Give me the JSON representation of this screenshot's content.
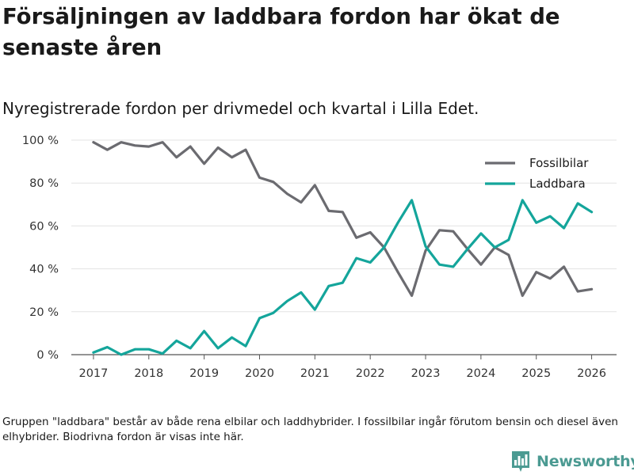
{
  "title": "Försäljningen av laddbara fordon har ökat de senaste åren",
  "subtitle": "Nyregistrerade fordon per drivmedel och kvartal i Lilla Edet.",
  "footnote": "Gruppen \"laddbara\" består av både rena elbilar och laddhybrider. I fossilbilar ingår förutom bensin och diesel även elhybrider. Biodrivna fordon är visas inte här.",
  "brand": {
    "name": "Newsworthy",
    "icon": "bar-chart-logo-icon",
    "color": "#4b9a92"
  },
  "chart_data": {
    "type": "line",
    "title": "Nyregistrerade fordon per drivmedel och kvartal i Lilla Edet.",
    "xlabel": "",
    "ylabel": "",
    "xlim": [
      2016.6,
      2026.45
    ],
    "ylim": [
      0,
      100
    ],
    "x_ticks": [
      2017,
      2018,
      2019,
      2020,
      2021,
      2022,
      2023,
      2024,
      2025,
      2026
    ],
    "y_ticks": [
      0,
      20,
      40,
      60,
      80,
      100
    ],
    "y_tick_labels": [
      "0 %",
      "20 %",
      "40 %",
      "60 %",
      "80 %",
      "100 %"
    ],
    "grid": "horizontal",
    "legend_position": "top-right",
    "x": [
      2017.0,
      2017.25,
      2017.5,
      2017.75,
      2018.0,
      2018.25,
      2018.5,
      2018.75,
      2019.0,
      2019.25,
      2019.5,
      2019.75,
      2020.0,
      2020.25,
      2020.5,
      2020.75,
      2021.0,
      2021.25,
      2021.5,
      2021.75,
      2022.0,
      2022.25,
      2022.5,
      2022.75,
      2023.0,
      2023.25,
      2023.5,
      2023.75,
      2024.0,
      2024.25,
      2024.5,
      2024.75,
      2025.0,
      2025.25,
      2025.5,
      2025.75,
      2026.0
    ],
    "series": [
      {
        "name": "Fossilbilar",
        "color": "#6b6b70",
        "values": [
          99,
          95.5,
          99,
          97.5,
          97,
          99,
          92,
          97,
          89,
          96.5,
          92,
          95.5,
          82.5,
          80.5,
          75,
          71,
          79,
          67,
          66.5,
          54.5,
          57,
          50,
          38.5,
          27.5,
          48.5,
          58,
          57.5,
          49.5,
          42,
          50,
          46.5,
          27.5,
          38.5,
          35.5,
          41,
          29.5,
          30.5
        ]
      },
      {
        "name": "Laddbara",
        "color": "#14a59b",
        "values": [
          1,
          3.5,
          0,
          2.5,
          2.5,
          0.5,
          6.5,
          3,
          11,
          3,
          8,
          4,
          17,
          19.5,
          25,
          29,
          21,
          32,
          33.5,
          45,
          43,
          50,
          61.5,
          72,
          50.5,
          42,
          41,
          49,
          56.5,
          50,
          53.5,
          72,
          61.5,
          64.5,
          59,
          70.5,
          66.5
        ]
      }
    ]
  }
}
